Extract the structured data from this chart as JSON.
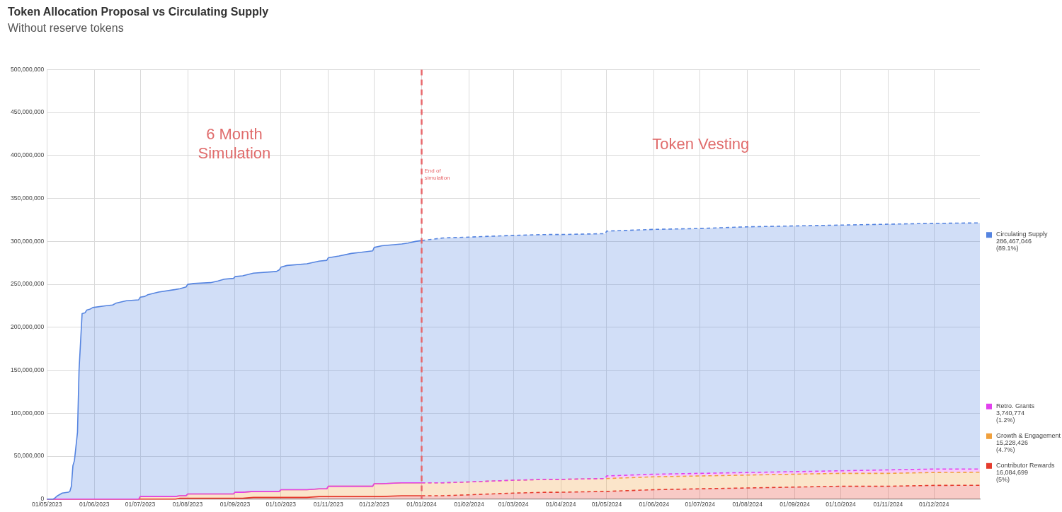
{
  "chart_data": {
    "type": "area",
    "title": "Token Allocation Proposal vs Circulating Supply",
    "subtitle": "Without reserve tokens",
    "x": [
      "2023-05-01",
      "2023-05-05",
      "2023-05-06",
      "2023-05-08",
      "2023-05-11",
      "2023-05-15",
      "2023-05-16",
      "2023-05-17",
      "2023-05-18",
      "2023-05-19",
      "2023-05-21",
      "2023-05-22",
      "2023-05-24",
      "2023-05-26",
      "2023-05-27",
      "2023-05-29",
      "2023-05-31",
      "2023-06-08",
      "2023-06-13",
      "2023-06-15",
      "2023-06-22",
      "2023-06-30",
      "2023-07-01",
      "2023-07-04",
      "2023-07-06",
      "2023-07-13",
      "2023-07-24",
      "2023-07-27",
      "2023-07-31",
      "2023-08-01",
      "2023-08-05",
      "2023-08-16",
      "2023-08-21",
      "2023-08-25",
      "2023-08-31",
      "2023-09-01",
      "2023-09-06",
      "2023-09-13",
      "2023-09-28",
      "2023-09-30",
      "2023-10-01",
      "2023-10-05",
      "2023-10-18",
      "2023-10-26",
      "2023-10-31",
      "2023-11-01",
      "2023-11-08",
      "2023-11-16",
      "2023-11-30",
      "2023-12-01",
      "2023-12-06",
      "2023-12-19",
      "2023-12-23",
      "2023-12-28",
      "2024-01-01",
      "2024-01-15",
      "2024-02-01",
      "2024-02-15",
      "2024-03-01",
      "2024-03-23",
      "2024-04-01",
      "2024-04-30",
      "2024-05-01",
      "2024-06-01",
      "2024-07-01",
      "2024-08-01",
      "2024-09-01",
      "2024-10-01",
      "2024-11-01",
      "2024-12-01",
      "2024-12-31"
    ],
    "series": [
      {
        "name": "Contributor Rewards",
        "color": "#e53b2d",
        "values": [
          0,
          0,
          0,
          0,
          0,
          0,
          0,
          0,
          0,
          0,
          0,
          0,
          0,
          0,
          0,
          0,
          0,
          0,
          0,
          0,
          0,
          0,
          0,
          0,
          0,
          0,
          0,
          1000000,
          1000000,
          1000000,
          1000000,
          1000000,
          1000000,
          1000000,
          1000000,
          1000000,
          1000000,
          2000000,
          2000000,
          2000000,
          2000000,
          2000000,
          2000000,
          3000000,
          3000000,
          3000000,
          3000000,
          3000000,
          3000000,
          3000000,
          3000000,
          4000000,
          4000000,
          4000000,
          4000000,
          4000000,
          5000000,
          6000000,
          7000000,
          8000000,
          8000000,
          9000000,
          9000000,
          11000000,
          12000000,
          13000000,
          14000000,
          15000000,
          15000000,
          16000000,
          16084699
        ]
      },
      {
        "name": "Growth & Engagement",
        "color": "#f0a03c",
        "values": [
          0,
          0,
          0,
          0,
          0,
          0,
          0,
          0,
          0,
          0,
          0,
          0,
          0,
          0,
          0,
          0,
          0,
          0,
          0,
          0,
          0,
          0,
          3000000,
          3000000,
          3000000,
          3000000,
          3000000,
          3000000,
          3000000,
          5000000,
          5000000,
          5000000,
          5000000,
          5000000,
          5000000,
          7000000,
          7000000,
          7000000,
          7000000,
          7000000,
          9000000,
          9000000,
          9000000,
          9000000,
          9000000,
          12000000,
          12000000,
          12000000,
          12000000,
          15000000,
          15000000,
          15000000,
          15000000,
          15000000,
          15000000,
          15000000,
          15000000,
          15000000,
          15000000,
          15000000,
          15000000,
          15000000,
          15000000,
          15000000,
          15000000,
          15000000,
          15000000,
          15000000,
          15000000,
          15000000,
          15228426
        ]
      },
      {
        "name": "Retro. Grants",
        "color": "#e240ee",
        "values": [
          0,
          0,
          0,
          0,
          0,
          0,
          0,
          0,
          0,
          0,
          0,
          0,
          0,
          0,
          0,
          0,
          0,
          0,
          0,
          0,
          0,
          0,
          0,
          0,
          0,
          0,
          0,
          0,
          0,
          0,
          0,
          0,
          0,
          0,
          0,
          0,
          0,
          0,
          0,
          0,
          0,
          0,
          0,
          0,
          0,
          0,
          0,
          0,
          0,
          0,
          0,
          0,
          0,
          0,
          0,
          0,
          0,
          0,
          0,
          0,
          0,
          0,
          3000000,
          3000000,
          3000000,
          3000000,
          3000000,
          3000000,
          4000000,
          4000000,
          3740774
        ]
      },
      {
        "name": "Circulating Supply",
        "color": "#5584e0",
        "values": [
          0,
          0,
          1000000,
          4000000,
          7000000,
          8000000,
          9000000,
          15000000,
          39000000,
          45000000,
          78000000,
          150000000,
          216000000,
          217000000,
          220000000,
          221000000,
          223000000,
          225000000,
          226000000,
          228000000,
          231000000,
          232000000,
          232000000,
          233000000,
          235000000,
          238000000,
          241000000,
          241000000,
          243000000,
          244000000,
          245000000,
          246000000,
          248000000,
          250000000,
          251000000,
          251000000,
          252000000,
          254000000,
          256000000,
          258000000,
          259000000,
          261000000,
          263000000,
          265000000,
          266000000,
          266000000,
          268000000,
          271000000,
          274000000,
          275000000,
          277000000,
          278000000,
          279000000,
          281000000,
          282000000,
          285000000,
          285000000,
          285000000,
          285000000,
          285000000,
          285000000,
          285000000,
          285000000,
          285000000,
          285000000,
          286000000,
          286000000,
          286000000,
          286000000,
          286000000,
          286467046
        ]
      }
    ],
    "stacked": true,
    "xlim": [
      "2023-05-01",
      "2024-12-31"
    ],
    "xticks": [
      {
        "value": "2023-05-01",
        "label": "01/05/2023"
      },
      {
        "value": "2023-06-01",
        "label": "01/06/2023"
      },
      {
        "value": "2023-07-01",
        "label": "01/07/2023"
      },
      {
        "value": "2023-08-01",
        "label": "01/08/2023"
      },
      {
        "value": "2023-09-01",
        "label": "01/09/2023"
      },
      {
        "value": "2023-10-01",
        "label": "01/10/2023"
      },
      {
        "value": "2023-11-01",
        "label": "01/11/2023"
      },
      {
        "value": "2023-12-01",
        "label": "01/12/2023"
      },
      {
        "value": "2024-01-01",
        "label": "01/01/2024"
      },
      {
        "value": "2024-02-01",
        "label": "01/02/2024"
      },
      {
        "value": "2024-03-01",
        "label": "01/03/2024"
      },
      {
        "value": "2024-04-01",
        "label": "01/04/2024"
      },
      {
        "value": "2024-05-01",
        "label": "01/05/2024"
      },
      {
        "value": "2024-06-01",
        "label": "01/06/2024"
      },
      {
        "value": "2024-07-01",
        "label": "01/07/2024"
      },
      {
        "value": "2024-08-01",
        "label": "01/08/2024"
      },
      {
        "value": "2024-09-01",
        "label": "01/09/2024"
      },
      {
        "value": "2024-10-01",
        "label": "01/10/2024"
      },
      {
        "value": "2024-11-01",
        "label": "01/11/2024"
      },
      {
        "value": "2024-12-01",
        "label": "01/12/2024"
      }
    ],
    "ylim": [
      0,
      500000000
    ],
    "yticks": [
      {
        "value": 0,
        "label": "0"
      },
      {
        "value": 50000000,
        "label": "50,000,000"
      },
      {
        "value": 100000000,
        "label": "100,000,000"
      },
      {
        "value": 150000000,
        "label": "150,000,000"
      },
      {
        "value": 200000000,
        "label": "200,000,000"
      },
      {
        "value": 250000000,
        "label": "250,000,000"
      },
      {
        "value": 300000000,
        "label": "300,000,000"
      },
      {
        "value": 350000000,
        "label": "350,000,000"
      },
      {
        "value": 400000000,
        "label": "400,000,000"
      },
      {
        "value": 450000000,
        "label": "450,000,000"
      },
      {
        "value": 500000000,
        "label": "500,000,000"
      }
    ],
    "grid": true,
    "legend": "right",
    "ref_lines": [
      {
        "axis": "x",
        "value": "2024-01-01",
        "label": "End of simulation",
        "color": "#e8676b",
        "line_style": "dashed"
      }
    ],
    "annotations": [
      "6 Month Simulation",
      "Token Vesting",
      "16,084,699 (5%)",
      "15,228,426 (4.7%)",
      "3,740,774 (1.2%)",
      "286,467,046 (89.1%)"
    ]
  }
}
